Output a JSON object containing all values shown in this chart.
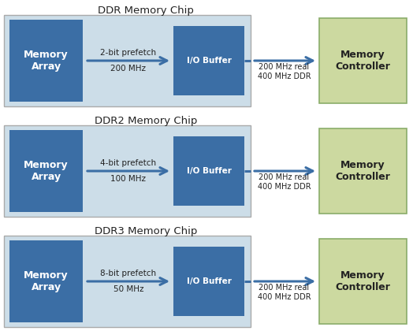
{
  "title_font_size": 9.5,
  "label_font_size": 9,
  "small_font_size": 7.5,
  "background_color": "#ffffff",
  "chip_bg_color": "#ccdde8",
  "chip_border_color": "#aaaaaa",
  "memory_array_color": "#3b6ea5",
  "io_buffer_color": "#3b6ea5",
  "memory_ctrl_color": "#ccd9a0",
  "memory_ctrl_border_color": "#8aad6a",
  "text_color_white": "#ffffff",
  "text_color_dark": "#222222",
  "arrow_color": "#3b6ea5",
  "rows": [
    {
      "title": "DDR Memory Chip",
      "prefetch": "2-bit prefetch",
      "freq": "200 MHz",
      "out_freq": "200 MHz real\n400 MHz DDR"
    },
    {
      "title": "DDR2 Memory Chip",
      "prefetch": "4-bit prefetch",
      "freq": "100 MHz",
      "out_freq": "200 MHz real\n400 MHz DDR"
    },
    {
      "title": "DDR3 Memory Chip",
      "prefetch": "8-bit prefetch",
      "freq": "50 MHz",
      "out_freq": "200 MHz real\n400 MHz DDR"
    }
  ]
}
